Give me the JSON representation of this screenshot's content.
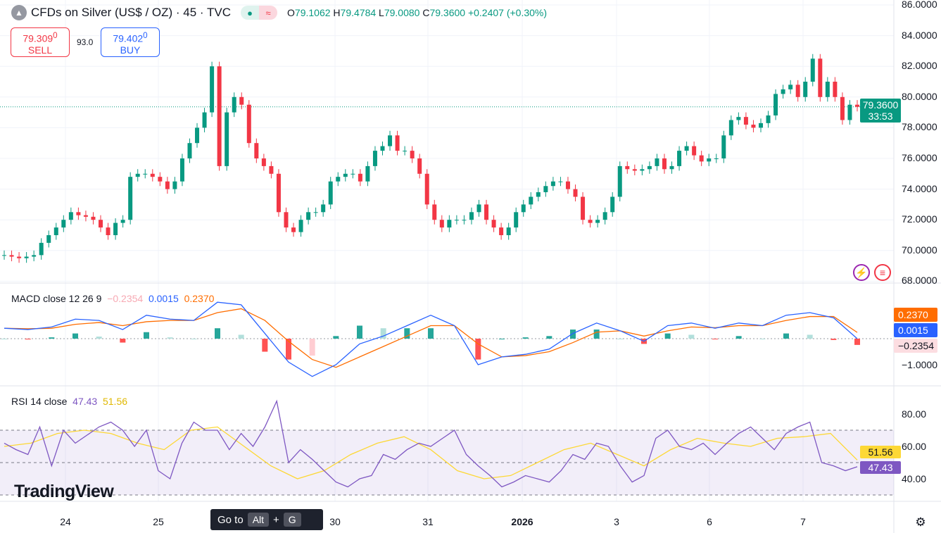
{
  "header": {
    "title": "CFDs on Silver (US$ / OZ) · 45 · TVC",
    "status_dot": "●",
    "compare_icon": "≈",
    "open_label": "O",
    "open": "79.1062",
    "high_label": "H",
    "high": "79.4784",
    "low_label": "L",
    "low": "79.0080",
    "close_label": "C",
    "close": "79.3600",
    "change": "+0.2407 (+0.30%)"
  },
  "trade": {
    "sell_price": "79.309",
    "sell_sup": "0",
    "sell_label": "SELL",
    "spread": "93.0",
    "buy_price": "79.402",
    "buy_sup": "0",
    "buy_label": "BUY"
  },
  "price_axis": {
    "ticks": [
      "86.0000",
      "84.0000",
      "82.0000",
      "80.0000",
      "78.0000",
      "76.0000",
      "74.0000",
      "72.0000",
      "70.0000",
      "68.0000"
    ],
    "last_price": "79.3600",
    "countdown": "33:53"
  },
  "macd": {
    "label": "MACD close 12 26 9",
    "hist": "−0.2354",
    "macd": "0.0015",
    "signal": "0.2370",
    "axis_tick": "−1.0000",
    "tag_signal": "0.2370",
    "tag_macd": "0.0015",
    "tag_hist": "−0.2354"
  },
  "rsi": {
    "label": "RSI 14 close",
    "rsi": "47.43",
    "ma": "51.56",
    "ticks": [
      "80.00",
      "60.00",
      "40.00"
    ],
    "tag_ma": "51.56",
    "tag_rsi": "47.43"
  },
  "time_axis": [
    "24",
    "25",
    "30",
    "31",
    "2026",
    "3",
    "6",
    "7"
  ],
  "tooltip": {
    "text": "Go to",
    "key1": "Alt",
    "plus": "+",
    "key2": "G"
  },
  "brand": "TradingView",
  "colors": {
    "up": "#089981",
    "down": "#f23645",
    "macd": "#2962ff",
    "signal": "#ff6d00",
    "rsi": "#7e57c2",
    "rsi_ma": "#fdd835"
  },
  "chart_data": {
    "type": "candlestick",
    "ylim": [
      68,
      86
    ],
    "closes": [
      69.7,
      69.6,
      69.5,
      69.6,
      69.7,
      70.5,
      71,
      71.5,
      72,
      72.5,
      72.3,
      72.2,
      72,
      71.5,
      71,
      71.8,
      72,
      74.8,
      75,
      75,
      74.8,
      74.5,
      74,
      74.5,
      76,
      77,
      78,
      79,
      82,
      75.5,
      79,
      80,
      79.5,
      77,
      76,
      75.5,
      75,
      72.5,
      71.5,
      71.2,
      72,
      72.5,
      72.5,
      73,
      74.5,
      74.8,
      75,
      75,
      74.5,
      75.5,
      76.5,
      76.8,
      77.5,
      76.5,
      76.5,
      76,
      75,
      73,
      72,
      71.5,
      72,
      72,
      72,
      72.5,
      73,
      72,
      71.5,
      71,
      71.5,
      72.5,
      73,
      73.5,
      73.8,
      74.2,
      74.5,
      74.5,
      74,
      73.5,
      72,
      71.8,
      72,
      72.5,
      73.5,
      75.5,
      75.3,
      75.2,
      75.3,
      75.5,
      76,
      75.3,
      75.5,
      76.5,
      76.8,
      76.2,
      75.8,
      76,
      76,
      77.5,
      78.5,
      78.7,
      78.2,
      78,
      78.3,
      78.8,
      80.2,
      80.5,
      80.8,
      80,
      81,
      82.5,
      80,
      81,
      80,
      78.5,
      79.5,
      79.36
    ],
    "macd_line": [
      0.4,
      0.35,
      0.45,
      0.75,
      0.7,
      0.35,
      0.9,
      0.75,
      0.7,
      1.4,
      1.3,
      0.2,
      -0.9,
      -1.45,
      -1.0,
      -0.2,
      0.1,
      0.5,
      0.9,
      0.5,
      -1.0,
      -0.7,
      -0.6,
      -0.4,
      0.2,
      0.6,
      0.3,
      -0.1,
      0.5,
      0.6,
      0.4,
      0.6,
      0.5,
      0.9,
      1.0,
      0.8,
      0.0
    ],
    "signal_line": [
      0.4,
      0.38,
      0.4,
      0.55,
      0.62,
      0.5,
      0.65,
      0.7,
      0.7,
      1.0,
      1.15,
      0.7,
      -0.1,
      -0.8,
      -1.1,
      -0.7,
      -0.3,
      0.1,
      0.5,
      0.5,
      -0.2,
      -0.7,
      -0.65,
      -0.5,
      -0.15,
      0.25,
      0.3,
      0.1,
      0.3,
      0.45,
      0.42,
      0.5,
      0.5,
      0.7,
      0.85,
      0.85,
      0.24
    ],
    "macd_ylim": [
      -1.5,
      2.0
    ],
    "rsi_line": [
      62,
      58,
      55,
      72,
      48,
      70,
      62,
      67,
      72,
      75,
      70,
      60,
      70,
      45,
      40,
      62,
      75,
      70,
      70,
      58,
      68,
      60,
      72,
      88,
      50,
      58,
      52,
      45,
      38,
      35,
      40,
      42,
      55,
      52,
      58,
      62,
      60,
      65,
      70,
      55,
      48,
      42,
      35,
      38,
      42,
      40,
      38,
      45,
      55,
      52,
      62,
      60,
      48,
      38,
      42,
      65,
      70,
      60,
      58,
      62,
      55,
      62,
      68,
      72,
      65,
      58,
      68,
      72,
      75,
      50,
      48,
      45,
      47.43
    ],
    "rsi_ma": [
      60,
      62,
      68,
      70,
      68,
      62,
      58,
      70,
      72,
      60,
      48,
      40,
      45,
      55,
      62,
      66,
      58,
      45,
      40,
      42,
      50,
      58,
      62,
      55,
      48,
      58,
      65,
      62,
      60,
      65,
      66,
      68,
      51.56
    ],
    "rsi_ylim": [
      26,
      94
    ],
    "rsi_band": [
      30,
      70
    ]
  }
}
